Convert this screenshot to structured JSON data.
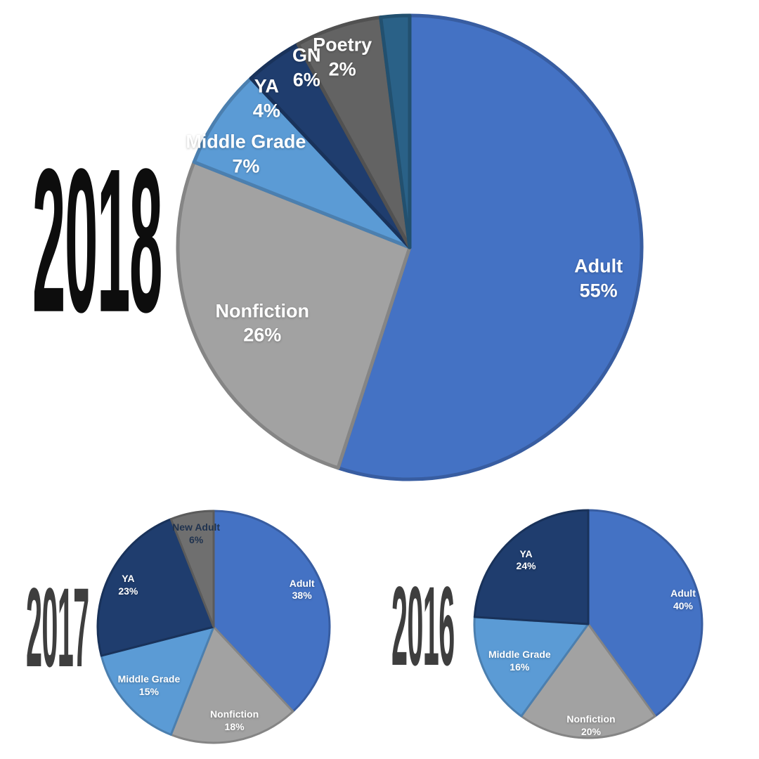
{
  "page": {
    "background": "#ffffff",
    "label_text_color": "#ffffff"
  },
  "chart_data": [
    {
      "type": "pie",
      "title": "2018",
      "start_angle_deg": 0,
      "direction": "clockwise",
      "slices": [
        {
          "label": "Adult",
          "value": 55,
          "pct_label": "55%",
          "color": "#4472c4",
          "label_pos": [
            0.901,
            0.566
          ]
        },
        {
          "label": "Nonfiction",
          "value": 26,
          "pct_label": "26%",
          "color": "#a2a2a2",
          "label_pos": [
            0.187,
            0.661
          ]
        },
        {
          "label": "Middle Grade",
          "value": 7,
          "pct_label": "7%",
          "color": "#5b9bd5",
          "label_pos": [
            0.152,
            0.302
          ]
        },
        {
          "label": "YA",
          "value": 4,
          "pct_label": "4%",
          "color": "#1f3d6e",
          "label_pos": [
            0.196,
            0.184
          ]
        },
        {
          "label": "GN",
          "value": 6,
          "pct_label": "6%",
          "color": "#636363",
          "label_pos": [
            0.281,
            0.118
          ]
        },
        {
          "label": "Poetry",
          "value": 2,
          "pct_label": "2%",
          "color": "#2a6187",
          "label_pos": [
            0.357,
            0.096
          ]
        }
      ],
      "layout": {
        "stroke_px": 5,
        "label_font_px": 27,
        "year_color": "#0d0d0d"
      }
    },
    {
      "type": "pie",
      "title": "2017",
      "start_angle_deg": 0,
      "direction": "clockwise",
      "slices": [
        {
          "label": "Adult",
          "value": 38,
          "pct_label": "38%",
          "color": "#4472c4",
          "label_pos": [
            0.874,
            0.344
          ]
        },
        {
          "label": "Nonfiction",
          "value": 18,
          "pct_label": "18%",
          "color": "#a2a2a2",
          "label_pos": [
            0.588,
            0.9
          ]
        },
        {
          "label": "Middle Grade",
          "value": 15,
          "pct_label": "15%",
          "color": "#5b9bd5",
          "label_pos": [
            0.226,
            0.75
          ]
        },
        {
          "label": "YA",
          "value": 23,
          "pct_label": "23%",
          "color": "#1f3d6e",
          "label_pos": [
            0.138,
            0.324
          ]
        },
        {
          "label": "New Adult",
          "value": 6,
          "pct_label": "6%",
          "color": "#6f6f6f",
          "label_pos": [
            0.426,
            0.106
          ],
          "label_color": "#20334f"
        }
      ],
      "layout": {
        "stroke_px": 3,
        "label_font_px": 14,
        "year_color": "#3e3e3e"
      }
    },
    {
      "type": "pie",
      "title": "2016",
      "start_angle_deg": 0,
      "direction": "clockwise",
      "slices": [
        {
          "label": "Adult",
          "value": 40,
          "pct_label": "40%",
          "color": "#4472c4",
          "label_pos": [
            0.909,
            0.396
          ]
        },
        {
          "label": "Nonfiction",
          "value": 20,
          "pct_label": "20%",
          "color": "#a2a2a2",
          "label_pos": [
            0.512,
            0.94
          ]
        },
        {
          "label": "Middle Grade",
          "value": 16,
          "pct_label": "16%",
          "color": "#5b9bd5",
          "label_pos": [
            0.204,
            0.662
          ]
        },
        {
          "label": "YA",
          "value": 24,
          "pct_label": "24%",
          "color": "#1f3d6e",
          "label_pos": [
            0.232,
            0.226
          ]
        }
      ],
      "layout": {
        "stroke_px": 3,
        "label_font_px": 14,
        "year_color": "#3e3e3e"
      }
    }
  ]
}
